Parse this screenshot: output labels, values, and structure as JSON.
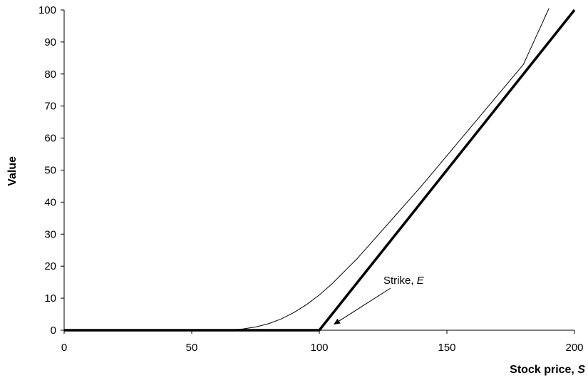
{
  "chart_data": {
    "type": "line",
    "title": "",
    "xlabel": "Stock price, ",
    "xlabel_var": "S",
    "ylabel": "Value",
    "xlim": [
      0,
      200
    ],
    "ylim": [
      0,
      100
    ],
    "xticks": [
      0,
      50,
      100,
      150,
      200
    ],
    "yticks": [
      0,
      10,
      20,
      30,
      40,
      50,
      60,
      70,
      80,
      90,
      100
    ],
    "grid": false,
    "legend": "none",
    "series": [
      {
        "style": "thin",
        "x": [
          0,
          60,
          65,
          70,
          75,
          80,
          85,
          90,
          95,
          100,
          105,
          110,
          115,
          120,
          125,
          130,
          135,
          140,
          150,
          160,
          170,
          180,
          190
        ],
        "y": [
          0,
          0,
          0.1,
          0.4,
          1.0,
          2.0,
          3.5,
          5.5,
          8.0,
          11.0,
          14.5,
          18.5,
          22.5,
          27.0,
          31.5,
          36.0,
          40.5,
          45.0,
          54.5,
          64.0,
          73.5,
          83.0,
          100.5
        ]
      },
      {
        "style": "thick",
        "x": [
          0,
          100,
          200
        ],
        "y": [
          0,
          0,
          100
        ]
      }
    ],
    "annotations": [
      {
        "text": "Strike, ",
        "var": "E",
        "x": 100,
        "y": 0
      }
    ]
  }
}
